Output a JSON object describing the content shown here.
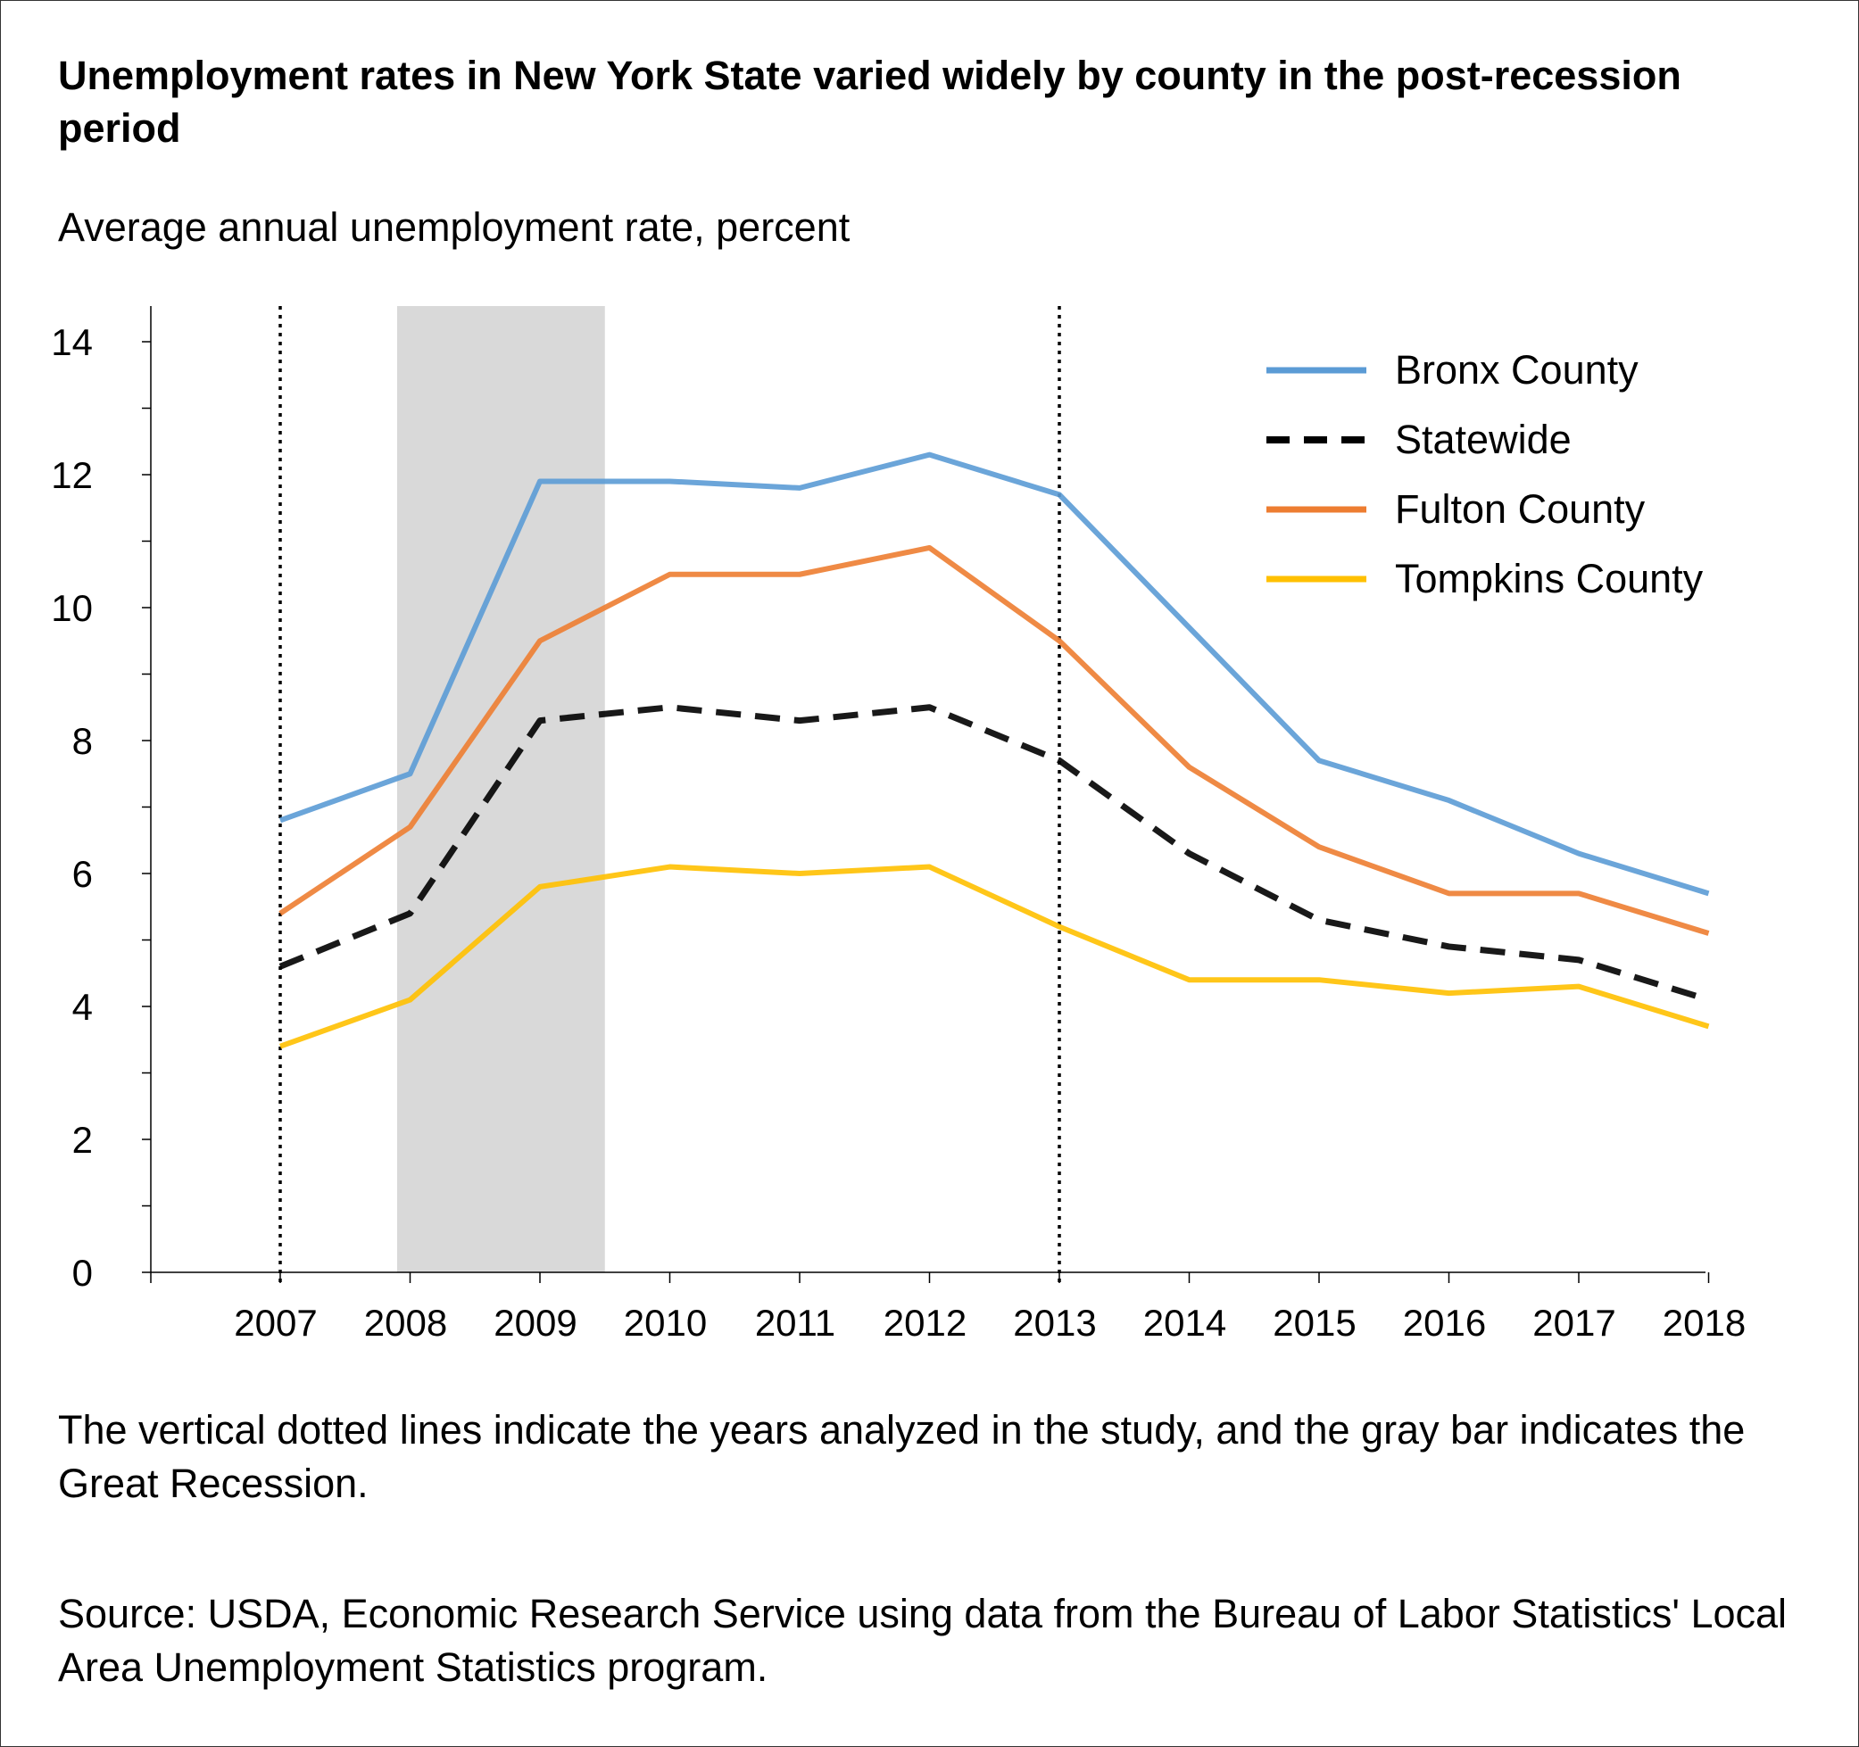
{
  "title": "Unemployment rates in New York State varied widely by county in the post-recession period",
  "subtitle": "Average annual unemployment rate, percent",
  "note": "The vertical dotted lines indicate the years analyzed in the study, and the gray bar indicates the Great Recession.",
  "source": "Source: USDA, Economic Research Service using data from the Bureau of Labor Statistics' Local Area Unemployment Statistics program.",
  "chart_data": {
    "type": "line",
    "title": "Unemployment rates in New York State varied widely by county in the post-recession period",
    "ylabel": "Average annual unemployment rate, percent",
    "xlabel": "",
    "categories": [
      "2007",
      "2008",
      "2009",
      "2010",
      "2011",
      "2012",
      "2013",
      "2014",
      "2015",
      "2016",
      "2017",
      "2018"
    ],
    "ylim": [
      0,
      14.5
    ],
    "yticks": [
      0,
      2,
      4,
      6,
      8,
      10,
      12,
      14
    ],
    "recession_band": {
      "start": 2007.9,
      "end": 2009.5,
      "color": "#d9d9d9"
    },
    "study_years": [
      2007,
      2013
    ],
    "legend_position": "top-right",
    "series": [
      {
        "name": "Bronx County",
        "style": "solid",
        "color": "#5b9bd5",
        "values": [
          6.8,
          7.5,
          11.9,
          11.9,
          11.8,
          12.3,
          11.7,
          9.7,
          7.7,
          7.1,
          6.3,
          5.7
        ]
      },
      {
        "name": "Statewide",
        "style": "dashed",
        "color": "#000000",
        "values": [
          4.6,
          5.4,
          8.3,
          8.5,
          8.3,
          8.5,
          7.7,
          6.3,
          5.3,
          4.9,
          4.7,
          4.1
        ]
      },
      {
        "name": "Fulton County",
        "style": "solid",
        "color": "#ed7d31",
        "values": [
          5.4,
          6.7,
          9.5,
          10.5,
          10.5,
          10.9,
          9.5,
          7.6,
          6.4,
          5.7,
          5.7,
          5.1
        ]
      },
      {
        "name": "Tompkins County",
        "style": "solid",
        "color": "#ffc000",
        "values": [
          3.4,
          4.1,
          5.8,
          6.1,
          6.0,
          6.1,
          5.2,
          4.4,
          4.4,
          4.2,
          4.3,
          3.7
        ]
      }
    ]
  }
}
